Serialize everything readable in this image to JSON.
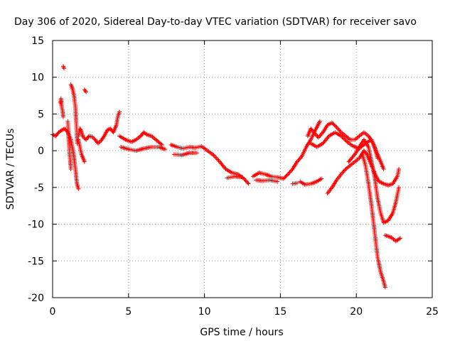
{
  "chart_data": {
    "type": "scatter",
    "title": "Day 306 of 2020, Sidereal Day-to-day VTEC variation (SDTVAR) for receiver savo",
    "xlabel": "GPS time / hours",
    "ylabel": "SDTVAR / TECUs",
    "xlim": [
      0,
      25
    ],
    "ylim": [
      -20,
      15
    ],
    "xticks": [
      0,
      5,
      10,
      15,
      20,
      25
    ],
    "yticks": [
      -20,
      -15,
      -10,
      -5,
      0,
      5,
      10,
      15
    ],
    "grid": true,
    "marker": "+",
    "series": [
      {
        "name": "SDTVAR",
        "color": "#ff0000",
        "tracks": [
          [
            [
              0.0,
              2.2
            ],
            [
              0.2,
              2.0
            ],
            [
              0.4,
              2.5
            ],
            [
              0.6,
              2.8
            ],
            [
              0.8,
              3.0
            ],
            [
              1.0,
              2.5
            ],
            [
              1.2,
              1.5
            ],
            [
              1.3,
              0.5
            ],
            [
              1.4,
              -0.8
            ],
            [
              1.5,
              -2.5
            ],
            [
              1.6,
              -4.5
            ],
            [
              1.7,
              -5.2
            ]
          ],
          [
            [
              0.5,
              6.5
            ],
            [
              0.55,
              7.1
            ],
            [
              0.6,
              6.0
            ],
            [
              0.65,
              5.4
            ],
            [
              0.7,
              4.6
            ]
          ],
          [
            [
              0.7,
              11.5
            ],
            [
              0.75,
              11.2
            ]
          ],
          [
            [
              1.2,
              9.0
            ],
            [
              1.3,
              8.5
            ],
            [
              1.4,
              7.6
            ],
            [
              1.5,
              6.0
            ],
            [
              1.55,
              4.0
            ],
            [
              1.6,
              2.0
            ],
            [
              1.62,
              1.0
            ]
          ],
          [
            [
              1.0,
              4.0
            ],
            [
              1.05,
              2.0
            ],
            [
              1.1,
              0.0
            ],
            [
              1.2,
              -2.5
            ]
          ],
          [
            [
              1.7,
              2.0
            ],
            [
              1.8,
              3.0
            ],
            [
              1.9,
              2.6
            ],
            [
              2.0,
              1.9
            ],
            [
              2.2,
              1.5
            ],
            [
              2.4,
              2.0
            ],
            [
              2.6,
              1.9
            ],
            [
              2.8,
              1.5
            ],
            [
              3.0,
              1.0
            ],
            [
              3.2,
              1.4
            ],
            [
              3.4,
              2.0
            ],
            [
              3.6,
              2.8
            ],
            [
              3.8,
              3.0
            ],
            [
              4.0,
              2.5
            ],
            [
              4.2,
              3.5
            ],
            [
              4.3,
              4.7
            ],
            [
              4.4,
              5.3
            ]
          ],
          [
            [
              2.1,
              8.3
            ],
            [
              2.2,
              8.0
            ]
          ],
          [
            [
              1.7,
              1.5
            ],
            [
              1.8,
              0.5
            ],
            [
              1.9,
              -0.5
            ],
            [
              2.0,
              -1.0
            ],
            [
              2.1,
              -1.5
            ]
          ],
          [
            [
              4.4,
              2.0
            ],
            [
              4.8,
              1.5
            ],
            [
              5.2,
              1.2
            ],
            [
              5.5,
              1.5
            ],
            [
              5.8,
              2.0
            ],
            [
              6.0,
              2.5
            ],
            [
              6.2,
              2.2
            ],
            [
              6.5,
              2.0
            ],
            [
              6.8,
              1.5
            ],
            [
              7.2,
              0.8
            ]
          ],
          [
            [
              4.5,
              0.5
            ],
            [
              5.0,
              0.2
            ],
            [
              5.5,
              0.0
            ],
            [
              6.0,
              0.3
            ],
            [
              6.5,
              0.5
            ],
            [
              7.0,
              0.5
            ],
            [
              7.4,
              0.2
            ]
          ],
          [
            [
              7.8,
              0.8
            ],
            [
              8.2,
              0.5
            ],
            [
              8.6,
              0.3
            ],
            [
              9.0,
              0.5
            ],
            [
              9.4,
              0.4
            ],
            [
              9.8,
              0.6
            ],
            [
              10.2,
              0.0
            ],
            [
              10.6,
              -0.6
            ],
            [
              11.0,
              -1.5
            ],
            [
              11.4,
              -2.5
            ],
            [
              11.8,
              -3.0
            ],
            [
              12.2,
              -3.2
            ],
            [
              12.6,
              -3.8
            ],
            [
              12.9,
              -4.5
            ]
          ],
          [
            [
              8.0,
              -0.5
            ],
            [
              8.5,
              -0.6
            ],
            [
              9.0,
              -0.3
            ],
            [
              9.5,
              -0.3
            ]
          ],
          [
            [
              11.5,
              -3.7
            ],
            [
              12.0,
              -3.5
            ],
            [
              12.5,
              -3.6
            ]
          ],
          [
            [
              13.2,
              -3.5
            ],
            [
              13.6,
              -3.0
            ],
            [
              14.0,
              -3.2
            ],
            [
              14.4,
              -3.5
            ],
            [
              14.8,
              -3.6
            ],
            [
              15.2,
              -3.8
            ],
            [
              15.5,
              -3.2
            ],
            [
              15.8,
              -2.5
            ],
            [
              16.1,
              -1.5
            ],
            [
              16.4,
              -0.8
            ],
            [
              16.7,
              0.5
            ],
            [
              17.0,
              1.5
            ],
            [
              17.3,
              2.8
            ],
            [
              17.6,
              4.0
            ]
          ],
          [
            [
              13.4,
              -4.0
            ],
            [
              13.8,
              -4.1
            ],
            [
              14.3,
              -4.0
            ],
            [
              14.8,
              -4.2
            ]
          ],
          [
            [
              16.3,
              -4.2
            ],
            [
              16.6,
              -4.6
            ],
            [
              17.0,
              -4.5
            ],
            [
              17.4,
              -4.2
            ],
            [
              17.7,
              -3.8
            ]
          ],
          [
            [
              15.8,
              -4.5
            ],
            [
              16.1,
              -4.4
            ]
          ],
          [
            [
              16.8,
              2.0
            ],
            [
              17.0,
              3.0
            ],
            [
              17.2,
              2.5
            ],
            [
              17.5,
              1.8
            ],
            [
              17.8,
              2.5
            ],
            [
              18.1,
              3.5
            ],
            [
              18.4,
              3.8
            ],
            [
              18.7,
              3.2
            ],
            [
              19.0,
              2.5
            ],
            [
              19.3,
              2.0
            ],
            [
              19.6,
              1.5
            ],
            [
              19.9,
              1.5
            ],
            [
              20.2,
              2.0
            ],
            [
              20.5,
              2.5
            ],
            [
              20.8,
              2.0
            ],
            [
              21.1,
              1.0
            ],
            [
              21.4,
              -0.5
            ],
            [
              21.6,
              -1.5
            ],
            [
              21.8,
              -2.5
            ]
          ],
          [
            [
              17.0,
              1.0
            ],
            [
              17.4,
              0.5
            ],
            [
              17.8,
              1.0
            ],
            [
              18.2,
              2.0
            ],
            [
              18.6,
              2.5
            ],
            [
              19.0,
              2.0
            ],
            [
              19.4,
              1.2
            ],
            [
              19.8,
              0.6
            ],
            [
              20.2,
              0.3
            ],
            [
              20.6,
              1.0
            ],
            [
              21.0,
              1.5
            ],
            [
              21.2,
              0.5
            ],
            [
              21.4,
              -1.0
            ]
          ],
          [
            [
              18.1,
              -5.8
            ],
            [
              18.4,
              -5.0
            ],
            [
              18.7,
              -4.0
            ],
            [
              19.0,
              -3.2
            ],
            [
              19.3,
              -2.5
            ],
            [
              19.6,
              -2.0
            ],
            [
              19.9,
              -1.5
            ],
            [
              20.2,
              -1.0
            ],
            [
              20.5,
              0.0
            ],
            [
              20.7,
              -0.5
            ],
            [
              20.9,
              -1.5
            ],
            [
              21.1,
              -2.5
            ],
            [
              21.3,
              -3.5
            ],
            [
              21.5,
              -4.2
            ],
            [
              21.8,
              -4.5
            ],
            [
              22.1,
              -4.7
            ],
            [
              22.4,
              -4.5
            ],
            [
              22.7,
              -3.5
            ],
            [
              22.8,
              -2.5
            ]
          ],
          [
            [
              19.5,
              -1.5
            ],
            [
              19.9,
              -0.5
            ],
            [
              20.2,
              0.5
            ],
            [
              20.5,
              1.5
            ],
            [
              20.8,
              0.5
            ],
            [
              21.0,
              -1.5
            ],
            [
              21.2,
              -3.5
            ],
            [
              21.4,
              -6.5
            ],
            [
              21.6,
              -8.5
            ],
            [
              21.8,
              -9.8
            ],
            [
              22.1,
              -9.5
            ],
            [
              22.4,
              -8.5
            ],
            [
              22.6,
              -7.0
            ],
            [
              22.8,
              -5.0
            ]
          ],
          [
            [
              20.4,
              -0.5
            ],
            [
              20.6,
              -2.0
            ],
            [
              20.8,
              -4.5
            ],
            [
              21.0,
              -7.5
            ],
            [
              21.2,
              -11.0
            ],
            [
              21.4,
              -14.5
            ],
            [
              21.6,
              -16.5
            ],
            [
              21.8,
              -17.8
            ],
            [
              21.9,
              -18.6
            ]
          ],
          [
            [
              21.9,
              -11.5
            ],
            [
              22.3,
              -11.8
            ],
            [
              22.6,
              -12.3
            ],
            [
              22.9,
              -11.9
            ]
          ]
        ]
      }
    ]
  }
}
